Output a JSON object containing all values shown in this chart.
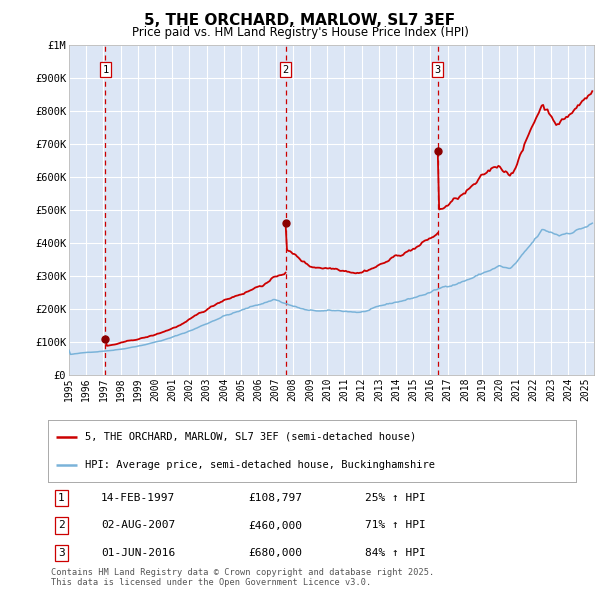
{
  "title": "5, THE ORCHARD, MARLOW, SL7 3EF",
  "subtitle": "Price paid vs. HM Land Registry's House Price Index (HPI)",
  "background_color": "#ffffff",
  "plot_bg_color": "#dce6f5",
  "grid_color": "#ffffff",
  "ylim": [
    0,
    1000000
  ],
  "xlim_start": 1995.0,
  "xlim_end": 2025.5,
  "sale1_date": 1997.12,
  "sale1_price": 108797,
  "sale2_date": 2007.58,
  "sale2_price": 460000,
  "sale3_date": 2016.42,
  "sale3_price": 680000,
  "hpi_color": "#7ab3d9",
  "price_color": "#cc0000",
  "marker_color": "#8b0000",
  "dashed_line_color": "#cc0000",
  "legend1_label": "5, THE ORCHARD, MARLOW, SL7 3EF (semi-detached house)",
  "legend2_label": "HPI: Average price, semi-detached house, Buckinghamshire",
  "table_entries": [
    {
      "num": "1",
      "date": "14-FEB-1997",
      "price": "£108,797",
      "pct": "25% ↑ HPI"
    },
    {
      "num": "2",
      "date": "02-AUG-2007",
      "price": "£460,000",
      "pct": "71% ↑ HPI"
    },
    {
      "num": "3",
      "date": "01-JUN-2016",
      "price": "£680,000",
      "pct": "84% ↑ HPI"
    }
  ],
  "footer": "Contains HM Land Registry data © Crown copyright and database right 2025.\nThis data is licensed under the Open Government Licence v3.0."
}
